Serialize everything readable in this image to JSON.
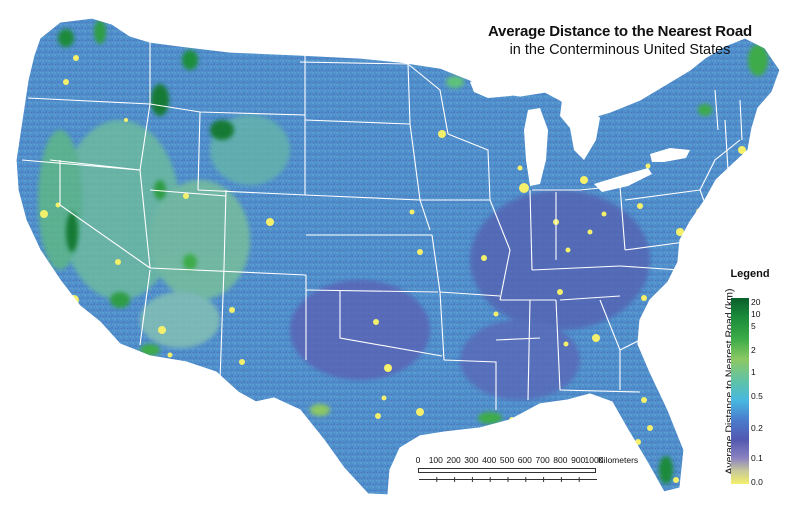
{
  "title": {
    "main": "Average Distance to the Nearest Road",
    "sub": "in the Conterminous United States"
  },
  "legend": {
    "title": "Legend",
    "axis_label": "Average Distance to Nearest Road (km)",
    "ticks": [
      "20",
      "10",
      "5",
      "2",
      "1",
      "0.5",
      "0.2",
      "0.1",
      "0.0"
    ]
  },
  "scale": {
    "labels": [
      "0",
      "100",
      "200",
      "300",
      "400",
      "500",
      "600",
      "700",
      "800",
      "900",
      "1000"
    ],
    "unit": "Kilometers"
  },
  "colors": {
    "far": "#0a5f2a",
    "moderate": "#8cc864",
    "medium": "#48b8e0",
    "near": "#5258b0",
    "nearest": "#f4f06c",
    "base_land": "#4f8fcb",
    "boundary": "#ffffff"
  }
}
